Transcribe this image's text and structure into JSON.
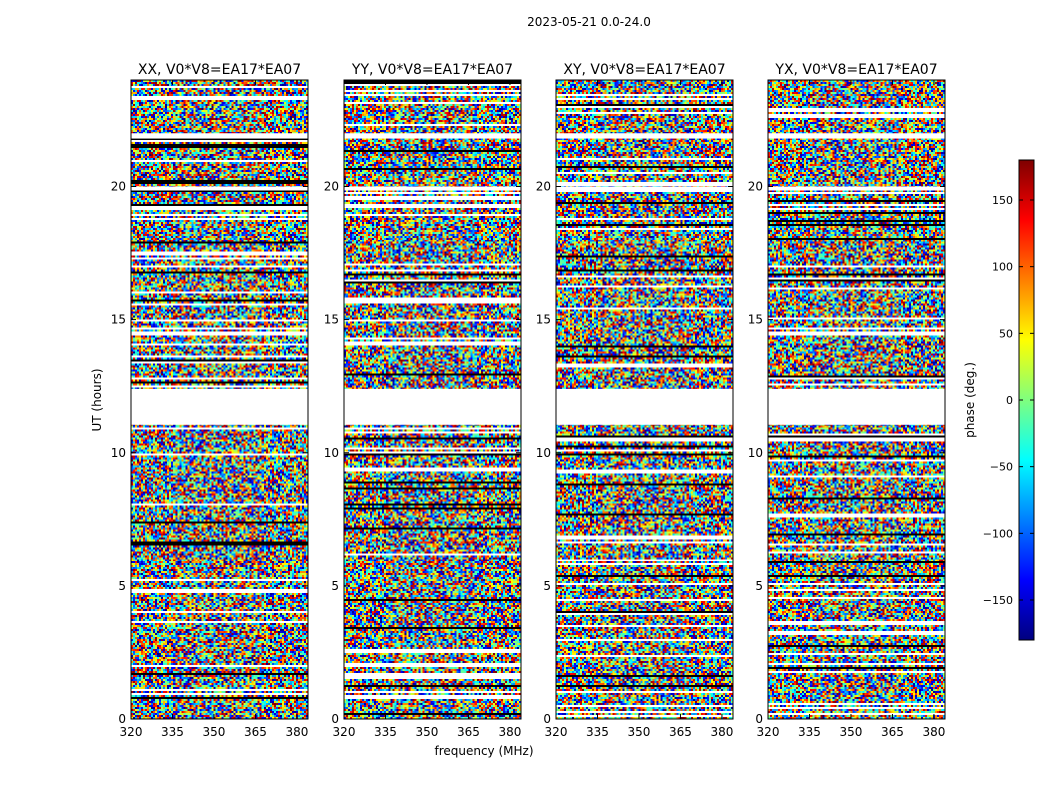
{
  "figure": {
    "suptitle": "2023-05-21 0.0-24.0",
    "xlabel": "frequency (MHz)",
    "ylabel": "UT (hours)"
  },
  "chart_data": {
    "type": "heatmap",
    "x": [
      320,
      335,
      350,
      365,
      380
    ],
    "x_tick_labels": [
      "320",
      "335",
      "350",
      "365",
      "380"
    ],
    "xlim": [
      320,
      384
    ],
    "y": [
      0,
      5,
      10,
      15,
      20
    ],
    "y_tick_labels": [
      "0",
      "5",
      "10",
      "15",
      "20"
    ],
    "ylim": [
      0,
      24
    ],
    "panels": [
      {
        "title": "XX, V0*V8=EA17*EA07",
        "polarization": "XX"
      },
      {
        "title": "YY, V0*V8=EA17*EA07",
        "polarization": "YY"
      },
      {
        "title": "XY, V0*V8=EA17*EA07",
        "polarization": "XY"
      },
      {
        "title": "YX, V0*V8=EA17*EA07",
        "polarization": "YX"
      }
    ],
    "colorbar": {
      "label": "phase (deg.)",
      "range": [
        -180,
        180
      ],
      "ticks": [
        150,
        100,
        50,
        0,
        -50,
        -100,
        -150
      ],
      "tick_labels": [
        "150",
        "100",
        "50",
        "0",
        "−50",
        "−100",
        "−150"
      ],
      "colormap": "jet",
      "colors": [
        "#00007f",
        "#0000ff",
        "#007fff",
        "#00ffff",
        "#7fff7f",
        "#ffff00",
        "#ff7f00",
        "#ff0000",
        "#7f0000"
      ]
    },
    "no_data_ut_ranges": [
      [
        12.4,
        11.05
      ],
      [
        20.0,
        19.85
      ],
      [
        22.0,
        21.8
      ]
    ]
  }
}
